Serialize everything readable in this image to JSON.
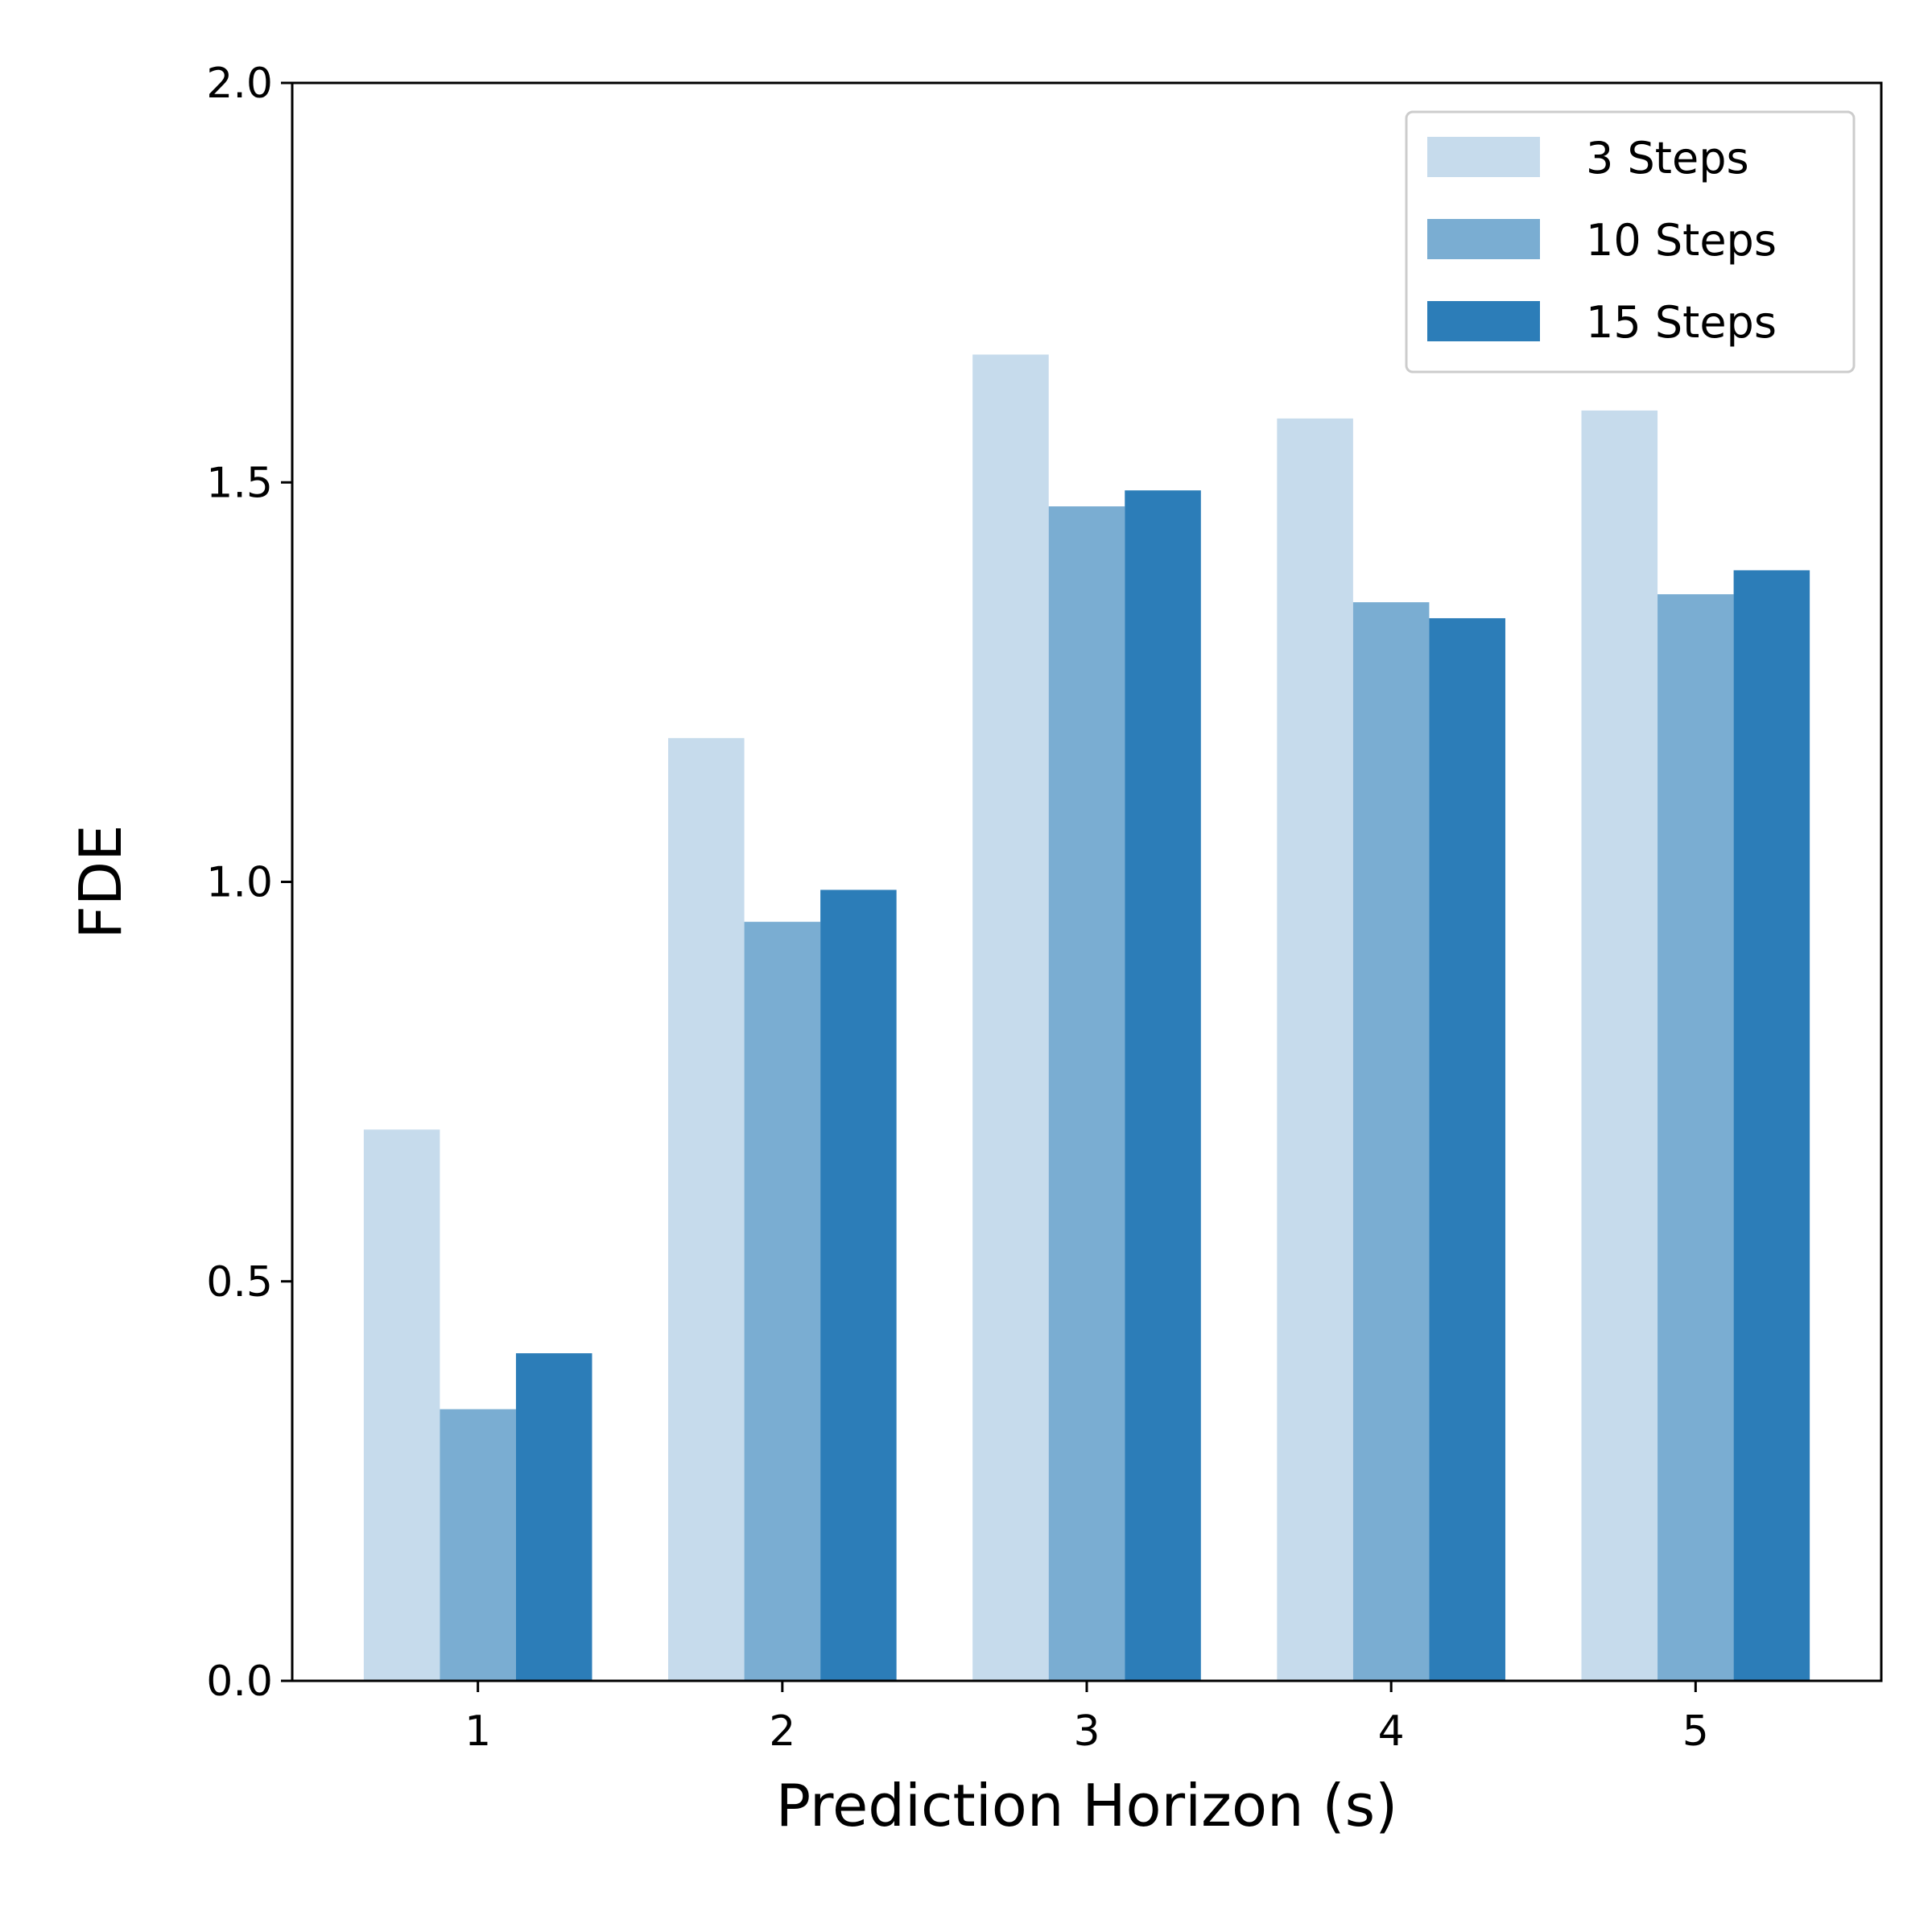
{
  "chart_data": {
    "type": "bar",
    "title": "",
    "xlabel": "Prediction Horizon (s)",
    "ylabel": "FDE",
    "categories": [
      "1",
      "2",
      "3",
      "4",
      "5"
    ],
    "ylim": [
      0,
      2.0
    ],
    "yticks": [
      "0.0",
      "0.5",
      "1.0",
      "1.5",
      "2.0"
    ],
    "grid": false,
    "legend_position": "top-right",
    "series": [
      {
        "name": "3 Steps",
        "color": "#c6dbec",
        "values": [
          0.69,
          1.18,
          1.66,
          1.58,
          1.59
        ]
      },
      {
        "name": "10 Steps",
        "color": "#7aadd2",
        "values": [
          0.34,
          0.95,
          1.47,
          1.35,
          1.36
        ]
      },
      {
        "name": "15 Steps",
        "color": "#2c7db8",
        "values": [
          0.41,
          0.99,
          1.49,
          1.33,
          1.39
        ]
      }
    ]
  }
}
